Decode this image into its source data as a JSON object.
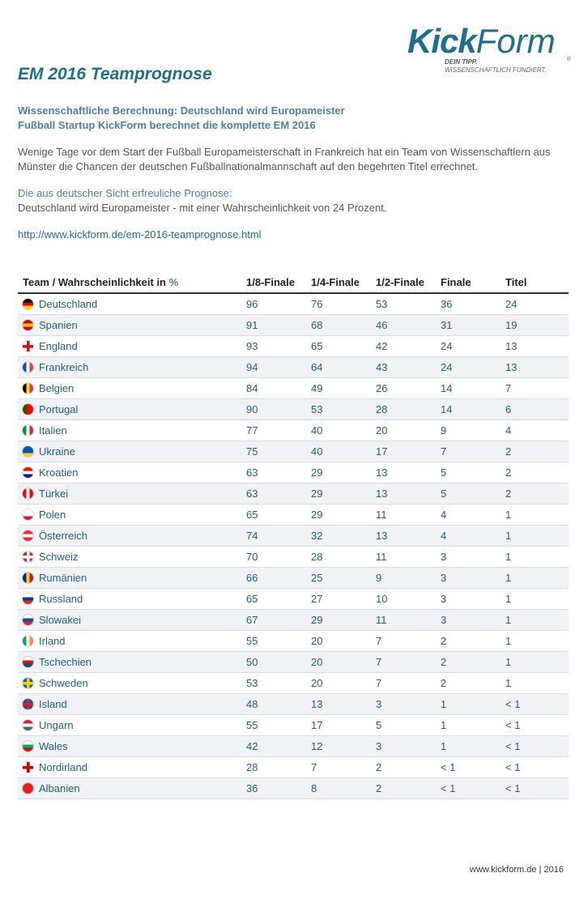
{
  "logo": {
    "kick": "Kick",
    "form": "Form",
    "reg": "®",
    "tagline1": "DEIN TIPP.",
    "tagline2": "WISSENSCHAFTLICH FUNDIERT."
  },
  "title": "EM 2016 Teamprognose",
  "subtitle1": "Wissenschaftliche Berechnung: Deutschland wird Europameister",
  "subtitle2": "Fußball Startup KickForm berechnet die komplette EM 2016",
  "paragraph": "Wenige Tage vor dem Start der Fußball Europameisterschaft in Frankreich hat ein Team von Wissenschaftlern aus Münster die Chancen der deutschen Fußballnationalmannschaft auf den begehrten Titel errechnet.",
  "highlight": "Die aus deutscher Sicht erfreuliche Prognose:",
  "statement": "Deutschland wird Europameister - mit einer Wahrscheinlichkeit von 24 Prozent.",
  "link": "http://www.kickform.de/em-2016-teamprognose.html",
  "table": {
    "headers": {
      "team": "Team / Wahrscheinlichkeit in",
      "unit": "%",
      "r16": "1/8-Finale",
      "qf": "1/4-Finale",
      "sf": "1/2-Finale",
      "f": "Finale",
      "t": "Titel"
    },
    "rows": [
      {
        "team": "Deutschland",
        "r16": "96",
        "qf": "76",
        "sf": "53",
        "f": "36",
        "t": "24",
        "flag": [
          "#000000",
          "#dd0000",
          "#ffce00"
        ],
        "dir": "h"
      },
      {
        "team": "Spanien",
        "r16": "91",
        "qf": "68",
        "sf": "46",
        "f": "31",
        "t": "19",
        "flag": [
          "#c60b1e",
          "#ffc400",
          "#c60b1e"
        ],
        "dir": "h"
      },
      {
        "team": "England",
        "r16": "93",
        "qf": "65",
        "sf": "42",
        "f": "24",
        "t": "13",
        "flag": [
          "#ffffff",
          "#ce1124",
          "#ffffff"
        ],
        "dir": "cross"
      },
      {
        "team": "Frankreich",
        "r16": "94",
        "qf": "64",
        "sf": "43",
        "f": "24",
        "t": "13",
        "flag": [
          "#0055a4",
          "#ffffff",
          "#ef4135"
        ],
        "dir": "v"
      },
      {
        "team": "Belgien",
        "r16": "84",
        "qf": "49",
        "sf": "26",
        "f": "14",
        "t": "7",
        "flag": [
          "#000000",
          "#fdda24",
          "#ef3340"
        ],
        "dir": "v"
      },
      {
        "team": "Portugal",
        "r16": "90",
        "qf": "53",
        "sf": "28",
        "f": "14",
        "t": "6",
        "flag": [
          "#006600",
          "#ff0000",
          "#ff0000"
        ],
        "dir": "v"
      },
      {
        "team": "Italien",
        "r16": "77",
        "qf": "40",
        "sf": "20",
        "f": "9",
        "t": "4",
        "flag": [
          "#009246",
          "#ffffff",
          "#ce2b37"
        ],
        "dir": "v"
      },
      {
        "team": "Ukraine",
        "r16": "75",
        "qf": "40",
        "sf": "17",
        "f": "7",
        "t": "2",
        "flag": [
          "#0057b7",
          "#0057b7",
          "#ffd700"
        ],
        "dir": "h"
      },
      {
        "team": "Kroatien",
        "r16": "63",
        "qf": "29",
        "sf": "13",
        "f": "5",
        "t": "2",
        "flag": [
          "#ff0000",
          "#ffffff",
          "#171796"
        ],
        "dir": "h"
      },
      {
        "team": "Türkei",
        "r16": "63",
        "qf": "29",
        "sf": "13",
        "f": "5",
        "t": "2",
        "flag": [
          "#e30a17",
          "#ffffff",
          "#e30a17"
        ],
        "dir": "v"
      },
      {
        "team": "Polen",
        "r16": "65",
        "qf": "29",
        "sf": "11",
        "f": "4",
        "t": "1",
        "flag": [
          "#ffffff",
          "#ffffff",
          "#dc143c"
        ],
        "dir": "h"
      },
      {
        "team": "Österreich",
        "r16": "74",
        "qf": "32",
        "sf": "13",
        "f": "4",
        "t": "1",
        "flag": [
          "#ed2939",
          "#ffffff",
          "#ed2939"
        ],
        "dir": "h"
      },
      {
        "team": "Schweiz",
        "r16": "70",
        "qf": "28",
        "sf": "11",
        "f": "3",
        "t": "1",
        "flag": [
          "#d52b1e",
          "#ffffff",
          "#d52b1e"
        ],
        "dir": "cross"
      },
      {
        "team": "Rumänien",
        "r16": "66",
        "qf": "25",
        "sf": "9",
        "f": "3",
        "t": "1",
        "flag": [
          "#002b7f",
          "#fcd116",
          "#ce1126"
        ],
        "dir": "v"
      },
      {
        "team": "Russland",
        "r16": "65",
        "qf": "27",
        "sf": "10",
        "f": "3",
        "t": "1",
        "flag": [
          "#ffffff",
          "#0039a6",
          "#d52b1e"
        ],
        "dir": "h"
      },
      {
        "team": "Slowakei",
        "r16": "67",
        "qf": "29",
        "sf": "11",
        "f": "3",
        "t": "1",
        "flag": [
          "#ffffff",
          "#0b4ea2",
          "#ee1c25"
        ],
        "dir": "h"
      },
      {
        "team": "Irland",
        "r16": "55",
        "qf": "20",
        "sf": "7",
        "f": "2",
        "t": "1",
        "flag": [
          "#169b62",
          "#ffffff",
          "#ff883e"
        ],
        "dir": "v"
      },
      {
        "team": "Tschechien",
        "r16": "50",
        "qf": "20",
        "sf": "7",
        "f": "2",
        "t": "1",
        "flag": [
          "#ffffff",
          "#d7141a",
          "#11457e"
        ],
        "dir": "h"
      },
      {
        "team": "Schweden",
        "r16": "53",
        "qf": "20",
        "sf": "7",
        "f": "2",
        "t": "1",
        "flag": [
          "#006aa7",
          "#fecc00",
          "#006aa7"
        ],
        "dir": "cross"
      },
      {
        "team": "Island",
        "r16": "48",
        "qf": "13",
        "sf": "3",
        "f": "1",
        "t": "< 1",
        "flag": [
          "#02529c",
          "#dc1e35",
          "#02529c"
        ],
        "dir": "cross"
      },
      {
        "team": "Ungarn",
        "r16": "55",
        "qf": "17",
        "sf": "5",
        "f": "1",
        "t": "< 1",
        "flag": [
          "#ce2939",
          "#ffffff",
          "#477050"
        ],
        "dir": "h"
      },
      {
        "team": "Wales",
        "r16": "42",
        "qf": "12",
        "sf": "3",
        "f": "1",
        "t": "< 1",
        "flag": [
          "#ffffff",
          "#00b140",
          "#d30731"
        ],
        "dir": "h"
      },
      {
        "team": "Nordirland",
        "r16": "28",
        "qf": "7",
        "sf": "2",
        "f": "< 1",
        "t": "< 1",
        "flag": [
          "#ffffff",
          "#cc0000",
          "#ffffff"
        ],
        "dir": "cross"
      },
      {
        "team": "Albanien",
        "r16": "36",
        "qf": "8",
        "sf": "2",
        "f": "< 1",
        "t": "< 1",
        "flag": [
          "#e41e20",
          "#e41e20",
          "#e41e20"
        ],
        "dir": "h"
      }
    ]
  },
  "footer": "www.kickform.de | 2016"
}
